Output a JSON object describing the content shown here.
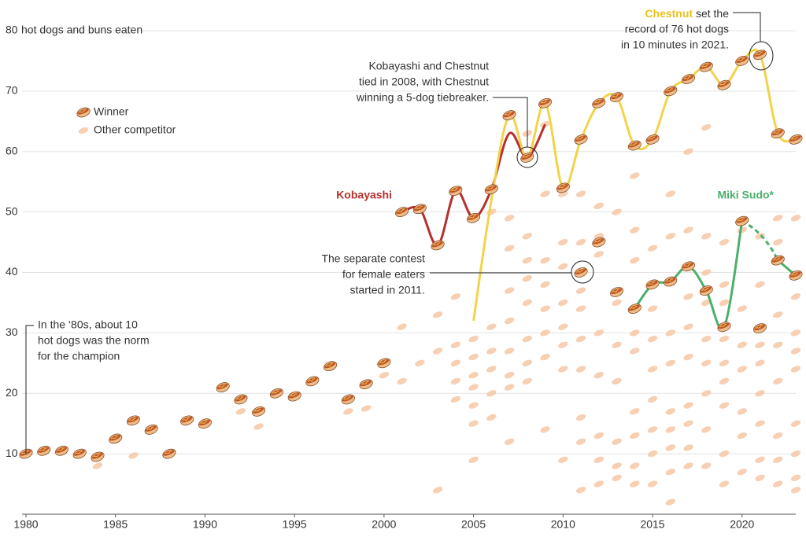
{
  "chart_data": {
    "type": "scatter",
    "y_label": "hot dogs and buns eaten",
    "xlim": [
      1980,
      2023
    ],
    "ylim": [
      0,
      80
    ],
    "xticks": [
      1980,
      1985,
      1990,
      1995,
      2000,
      2005,
      2010,
      2015,
      2020
    ],
    "yticks": [
      10,
      20,
      30,
      40,
      50,
      60,
      70,
      80
    ],
    "grid": true,
    "legend": "upper left",
    "series": [
      {
        "name": "Winner",
        "color": "#c0552a",
        "x": [
          1980,
          1981,
          1982,
          1983,
          1984,
          1985,
          1986,
          1987,
          1988,
          1989,
          1990,
          1991,
          1992,
          1993,
          1994,
          1995,
          1996,
          1997,
          1998,
          1999,
          2000,
          2001,
          2002,
          2003,
          2004,
          2005,
          2006,
          2007,
          2008,
          2009,
          2010,
          2011,
          2012,
          2013,
          2014,
          2015,
          2016,
          2017,
          2018,
          2019,
          2020,
          2021,
          2022,
          2023
        ],
        "values": [
          [
            10
          ],
          [
            10.5
          ],
          [
            10.5
          ],
          [
            10
          ],
          [
            9.5
          ],
          [
            12.5
          ],
          [
            15.5
          ],
          [
            14
          ],
          [
            10
          ],
          [
            15.5
          ],
          [
            15
          ],
          [
            21
          ],
          [
            19
          ],
          [
            17
          ],
          [
            20
          ],
          [
            19.5
          ],
          [
            22
          ],
          [
            24.5
          ],
          [
            19
          ],
          [
            21.5
          ],
          [
            25
          ],
          [
            50
          ],
          [
            50.5
          ],
          [
            44.5
          ],
          [
            53.5
          ],
          [
            49
          ],
          [
            53.75
          ],
          [
            66
          ],
          [
            59
          ],
          [
            68
          ],
          [
            54
          ],
          [
            62,
            40
          ],
          [
            68,
            45
          ],
          [
            69,
            36.75
          ],
          [
            61,
            34
          ],
          [
            62,
            38
          ],
          [
            70,
            38.5
          ],
          [
            72,
            41
          ],
          [
            74,
            37
          ],
          [
            71,
            31
          ],
          [
            75,
            48.5
          ],
          [
            76,
            30.75
          ],
          [
            63,
            42
          ],
          [
            62,
            39.5
          ]
        ]
      },
      {
        "name": "Other competitor",
        "color": "#f6c8a6",
        "x": [
          1984,
          1986,
          1992,
          1993,
          1998,
          1999,
          2000,
          2001,
          2002,
          2003,
          2004,
          2005,
          2006,
          2007,
          2008,
          2009,
          2010,
          2011,
          2012,
          2013,
          2014,
          2015,
          2016,
          2017,
          2018,
          2019,
          2020,
          2021,
          2022,
          2023
        ],
        "values": [
          [
            8
          ],
          [
            9.7
          ],
          [
            17
          ],
          [
            14.5
          ],
          [
            17
          ],
          [
            17.5
          ],
          [
            23
          ],
          [
            31,
            22
          ],
          [
            25
          ],
          [
            4,
            27,
            33
          ],
          [
            36,
            28,
            25,
            22,
            19
          ],
          [
            29,
            26,
            23,
            21,
            18,
            15,
            9
          ],
          [
            50,
            31,
            27,
            24,
            20,
            16
          ],
          [
            49,
            44,
            37,
            32,
            27,
            23,
            21,
            12
          ],
          [
            63,
            46,
            42,
            39,
            35,
            29,
            25,
            22
          ],
          [
            64.5,
            53,
            42,
            38,
            34,
            30,
            26,
            14
          ],
          [
            53,
            45,
            41,
            35,
            31,
            28,
            24,
            9
          ],
          [
            53,
            45,
            37,
            34,
            29,
            24,
            16,
            12,
            4
          ],
          [
            51,
            46,
            43,
            30,
            23,
            13,
            9,
            5
          ],
          [
            50,
            35,
            28,
            22,
            12,
            8,
            6
          ],
          [
            56,
            47,
            42,
            30,
            27,
            17,
            13,
            8,
            5
          ],
          [
            44,
            34,
            29,
            24,
            19,
            14,
            10,
            5
          ],
          [
            53,
            46,
            30,
            25,
            17,
            14,
            11,
            7,
            2
          ],
          [
            60,
            47,
            36,
            31,
            26,
            18,
            15,
            11,
            8
          ],
          [
            64,
            46,
            40,
            35,
            29,
            25,
            20,
            14,
            8
          ],
          [
            45,
            38,
            35,
            29,
            25,
            22,
            18,
            10,
            5
          ],
          [
            47,
            34,
            28,
            24,
            17,
            13,
            7
          ],
          [
            46,
            38,
            28,
            25,
            20,
            15,
            9,
            6
          ],
          [
            49,
            45,
            33,
            28,
            22,
            13,
            9,
            5
          ],
          [
            49,
            36,
            30,
            27,
            24,
            15,
            10,
            6,
            4
          ]
        ]
      }
    ],
    "lines": [
      {
        "name": "Kobayashi",
        "color": "#b5302e",
        "x": [
          2001,
          2002,
          2003,
          2004,
          2005,
          2006,
          2007,
          2008,
          2009
        ],
        "values": [
          50,
          50.5,
          44.5,
          53.5,
          49,
          53.75,
          63,
          59,
          64.5
        ]
      },
      {
        "name": "Chestnut",
        "color": "#f2d34a",
        "x": [
          2005,
          2006,
          2007,
          2008,
          2009,
          2010,
          2011,
          2012,
          2013,
          2014,
          2015,
          2016,
          2017,
          2018,
          2019,
          2020,
          2021,
          2022,
          2023
        ],
        "values": [
          32,
          52,
          66,
          59,
          68,
          54,
          62,
          68,
          69,
          61,
          62,
          70,
          72,
          74,
          71,
          75,
          76,
          63,
          62
        ]
      },
      {
        "name": "Miki Sudo*",
        "color": "#4caf6a",
        "gap": "dashed",
        "x": [
          2014,
          2015,
          2016,
          2017,
          2018,
          2019,
          2020,
          2021,
          2022,
          2023
        ],
        "values": [
          34,
          38,
          38.5,
          41,
          37,
          31,
          48.5,
          null,
          42,
          39.5
        ]
      }
    ],
    "annotations": [
      {
        "lines": [
          "In the ‘80s, about 10",
          "hot dogs was the norm",
          "for the champion"
        ]
      },
      {
        "lines": [
          "Kobayashi and Chestnut",
          "tied in 2008, with Chestnut",
          "winning a 5-dog tiebreaker."
        ]
      },
      {
        "lines": [
          "The separate contest",
          "for female eaters",
          "started in 2011."
        ]
      },
      {
        "lines": [
          " set the",
          "record of 76 hot dogs",
          "in 10 minutes in 2021."
        ]
      }
    ]
  }
}
